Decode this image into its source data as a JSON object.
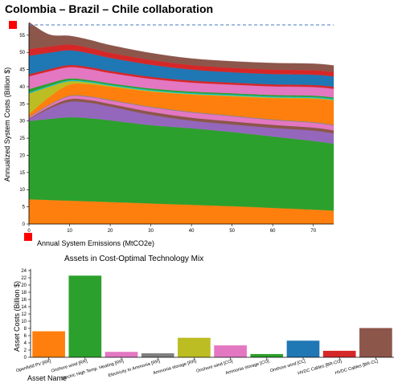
{
  "title": "Colombia – Brazil – Chile collaboration",
  "chart_data": [
    {
      "type": "area",
      "stacked": true,
      "xlabel": "Annual System Emissions (MtCO2e)",
      "ylabel": "Annualized System Costs (Billion $)",
      "xlim": [
        0,
        75
      ],
      "ylim": [
        0,
        58
      ],
      "x_ticks": [
        0,
        10,
        20,
        30,
        40,
        50,
        60,
        70
      ],
      "y_ticks": [
        0,
        5,
        10,
        15,
        20,
        25,
        30,
        35,
        40,
        45,
        50,
        55
      ],
      "legend": "none",
      "reference_line": {
        "y": 58,
        "style": "dashed",
        "color": "#4a78b8"
      },
      "markers": [
        {
          "name": "max-emission-marker",
          "color": "#ff0000"
        },
        {
          "name": "origin-marker",
          "color": "#ff0000"
        }
      ],
      "x": [
        0,
        5,
        10,
        15,
        20,
        30,
        40,
        50,
        60,
        70,
        75
      ],
      "series": [
        {
          "color": "#ff7f0e",
          "values": [
            7.2,
            7.0,
            6.8,
            6.6,
            6.4,
            6.0,
            5.6,
            5.2,
            4.7,
            4.2,
            3.9
          ]
        },
        {
          "color": "#2ca02c",
          "values": [
            22.8,
            23.6,
            24.3,
            24.2,
            23.8,
            22.8,
            22.3,
            21.6,
            20.8,
            20.0,
            19.5
          ]
        },
        {
          "color": "#9467bd",
          "values": [
            0.5,
            3.0,
            4.5,
            4.5,
            4.0,
            3.0,
            2.2,
            2.2,
            2.5,
            3.0,
            3.0
          ]
        },
        {
          "color": "#8c564b",
          "values": [
            0.2,
            0.5,
            0.8,
            0.8,
            0.8,
            0.9,
            0.9,
            0.9,
            0.9,
            0.9,
            0.9
          ]
        },
        {
          "color": "#e377c2",
          "values": [
            0.3,
            0.5,
            0.8,
            0.9,
            1.0,
            1.3,
            1.5,
            1.5,
            1.4,
            1.4,
            1.4
          ]
        },
        {
          "color": "#7f7f7f",
          "values": [
            0.2,
            0.2,
            0.2,
            0.2,
            0.2,
            0.2,
            0.2,
            0.2,
            0.2,
            0.2,
            0.2
          ]
        },
        {
          "color": "#ff7f0e",
          "values": [
            0.8,
            2.2,
            3.2,
            3.5,
            3.8,
            4.4,
            5.0,
            5.6,
            6.2,
            6.8,
            7.1
          ]
        },
        {
          "color": "#bcbd22",
          "values": [
            6.0,
            3.0,
            1.0,
            0.5,
            0.3,
            0.2,
            0.2,
            0.2,
            0.2,
            0.2,
            0.2
          ]
        },
        {
          "color": "#17becf",
          "values": [
            0.3,
            0.3,
            0.3,
            0.3,
            0.3,
            0.3,
            0.3,
            0.3,
            0.3,
            0.3,
            0.3
          ]
        },
        {
          "color": "#2ca02c",
          "values": [
            1.0,
            0.7,
            0.5,
            0.4,
            0.4,
            0.4,
            0.4,
            0.4,
            0.4,
            0.4,
            0.4
          ]
        },
        {
          "color": "#e377c2",
          "values": [
            3.7,
            3.5,
            3.3,
            3.2,
            3.0,
            2.8,
            2.6,
            2.5,
            2.5,
            2.5,
            2.5
          ]
        },
        {
          "color": "#d62728",
          "values": [
            0.6,
            0.6,
            0.6,
            0.6,
            0.6,
            0.6,
            0.6,
            0.6,
            0.6,
            0.6,
            0.6
          ]
        },
        {
          "color": "#1f77b4",
          "values": [
            5.4,
            4.8,
            4.3,
            4.0,
            3.8,
            3.5,
            3.2,
            3.0,
            3.0,
            3.0,
            3.0
          ]
        },
        {
          "color": "#d62728",
          "values": [
            2.0,
            1.8,
            1.7,
            1.6,
            1.5,
            1.4,
            1.3,
            1.3,
            1.3,
            1.3,
            1.3
          ]
        },
        {
          "color": "#8c564b",
          "values": [
            7.8,
            3.5,
            2.5,
            2.3,
            2.2,
            2.0,
            1.9,
            1.9,
            1.9,
            1.9,
            1.9
          ]
        }
      ]
    },
    {
      "type": "bar",
      "title": "Assets in Cost-Optimal Technology Mix",
      "xlabel": "Asset Name",
      "ylabel": "Asset Costs (Billion $)",
      "ylim": [
        0,
        24
      ],
      "y_ticks": [
        0,
        2,
        4,
        6,
        8,
        10,
        12,
        14,
        16,
        18,
        20,
        22,
        24
      ],
      "categories": [
        "Openfield PV [RR]",
        "Onshore wind [RR]",
        "Electric High Temp. Heating [RR]",
        "Electricity to Ammonia [RR]",
        "Ammonia storage [RR]",
        "Onshore wind [CO]",
        "Ammonia storage [CO]",
        "Onshore wind [CL]",
        "HVDC Cables [BR-CO]",
        "HVDC Cables [BR-CL]"
      ],
      "values": [
        7.2,
        22.6,
        1.5,
        1.1,
        5.4,
        3.3,
        0.9,
        4.6,
        1.8,
        8.1
      ],
      "colors": [
        "#ff7f0e",
        "#2ca02c",
        "#e377c2",
        "#7f7f7f",
        "#bcbd22",
        "#e377c2",
        "#2ca02c",
        "#1f77b4",
        "#d62728",
        "#8c564b"
      ]
    }
  ]
}
